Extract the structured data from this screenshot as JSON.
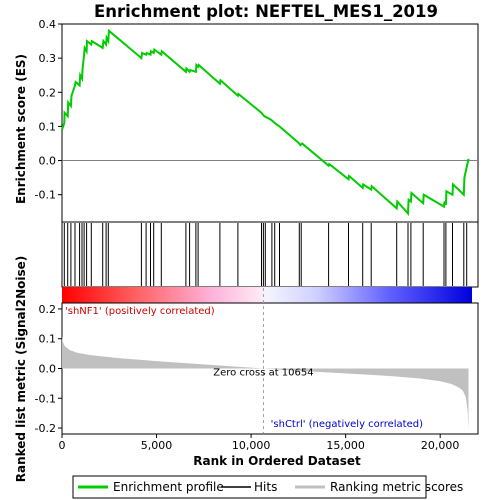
{
  "chart_data": {
    "type": "line",
    "title": "Enrichment plot: NEFTEL_MES1_2019",
    "top_panel": {
      "ylabel": "Enrichment score (ES)",
      "ylim": [
        -0.18,
        0.4
      ],
      "yticks": [
        -0.1,
        0.0,
        0.1,
        0.2,
        0.3,
        0.4
      ],
      "ytick_labels": [
        "-0.1",
        "0.0",
        "0.1",
        "0.2",
        "0.3",
        "0.4"
      ],
      "grid": false,
      "series": [
        {
          "name": "Enrichment profile",
          "color": "#00cc00",
          "x": [
            0,
            120,
            140,
            300,
            330,
            470,
            500,
            690,
            720,
            930,
            960,
            1060,
            1090,
            1170,
            1200,
            1300,
            1320,
            1550,
            1580,
            2150,
            2190,
            2330,
            2360,
            2450,
            2480,
            4200,
            4230,
            4450,
            4480,
            4680,
            4710,
            4850,
            4880,
            5250,
            5280,
            6550,
            6580,
            6750,
            6780,
            7080,
            7110,
            7200,
            7230,
            8350,
            8380,
            9300,
            9330,
            10550,
            10700,
            11050,
            11250,
            11500,
            12550,
            12600,
            12700,
            14100,
            14130,
            15150,
            15180,
            15900,
            15930,
            16350,
            16380,
            17700,
            17730,
            18300,
            18330,
            18450,
            18480,
            19100,
            19130,
            20200,
            20230,
            20300,
            20330,
            20650,
            20680,
            21250,
            21280,
            21500
          ],
          "y": [
            0.09,
            0.11,
            0.14,
            0.13,
            0.17,
            0.16,
            0.19,
            0.22,
            0.23,
            0.22,
            0.25,
            0.24,
            0.27,
            0.31,
            0.33,
            0.32,
            0.35,
            0.34,
            0.35,
            0.33,
            0.35,
            0.34,
            0.36,
            0.35,
            0.38,
            0.3,
            0.315,
            0.31,
            0.315,
            0.31,
            0.32,
            0.315,
            0.325,
            0.31,
            0.32,
            0.26,
            0.27,
            0.26,
            0.265,
            0.26,
            0.28,
            0.275,
            0.28,
            0.225,
            0.235,
            0.19,
            0.195,
            0.14,
            0.13,
            0.12,
            0.11,
            0.1,
            0.05,
            0.045,
            0.05,
            -0.015,
            -0.01,
            -0.055,
            -0.045,
            -0.08,
            -0.07,
            -0.085,
            -0.075,
            -0.14,
            -0.12,
            -0.155,
            -0.115,
            -0.12,
            -0.095,
            -0.125,
            -0.1,
            -0.135,
            -0.12,
            -0.13,
            -0.09,
            -0.1,
            -0.07,
            -0.1,
            -0.05,
            0.005
          ]
        }
      ]
    },
    "hits_panel": {
      "hit_positions": [
        120,
        300,
        470,
        690,
        930,
        1060,
        1170,
        1300,
        1550,
        2150,
        2330,
        2450,
        4200,
        4450,
        4680,
        4850,
        5250,
        6550,
        6750,
        7080,
        7200,
        8350,
        9300,
        10550,
        10650,
        10750,
        11100,
        11250,
        11500,
        12550,
        12650,
        14100,
        15150,
        15900,
        16350,
        17700,
        18300,
        18450,
        19100,
        20200,
        20300,
        20650,
        21250,
        21400
      ]
    },
    "bottom_panel": {
      "ylabel": "Ranked list metric (Signal2Noise)",
      "ylim": [
        -0.22,
        0.22
      ],
      "yticks": [
        -0.2,
        -0.1,
        0.0,
        0.1,
        0.2
      ],
      "ytick_labels": [
        "-0.2",
        "-0.1",
        "0.0",
        "0.1",
        "0.2"
      ],
      "xlabel": "Rank in Ordered Dataset",
      "xlim": [
        0,
        22000
      ],
      "xticks": [
        0,
        5000,
        10000,
        15000,
        20000
      ],
      "xtick_labels": [
        "0",
        "5,000",
        "10,000",
        "15,000",
        "20,000"
      ],
      "metric_curve": {
        "x": [
          0,
          40,
          150,
          400,
          800,
          1500,
          3000,
          5000,
          7000,
          9000,
          10654,
          12000,
          14000,
          16000,
          17500,
          19000,
          20000,
          20600,
          21000,
          21200,
          21350,
          21450,
          21500
        ],
        "y": [
          0.11,
          0.09,
          0.075,
          0.062,
          0.053,
          0.045,
          0.035,
          0.025,
          0.016,
          0.007,
          0.0,
          -0.006,
          -0.013,
          -0.02,
          -0.026,
          -0.034,
          -0.043,
          -0.052,
          -0.064,
          -0.075,
          -0.095,
          -0.14,
          -0.205
        ]
      },
      "zero_cross": 10654,
      "zero_cross_label": "Zero cross at 10654",
      "positive_label": "'shNF1' (positively correlated)",
      "negative_label": "'shCtrl' (negatively correlated)",
      "positive_color": "#cc0000",
      "negative_color": "#0000cc"
    },
    "legend": {
      "placement": "bottom",
      "items": [
        {
          "label": "Enrichment profile",
          "color": "#00cc00"
        },
        {
          "label": "Hits",
          "color": "#000000"
        },
        {
          "label": "Ranking metric scores",
          "color": "#c0c0c0"
        }
      ]
    },
    "n_genes": 21500
  }
}
